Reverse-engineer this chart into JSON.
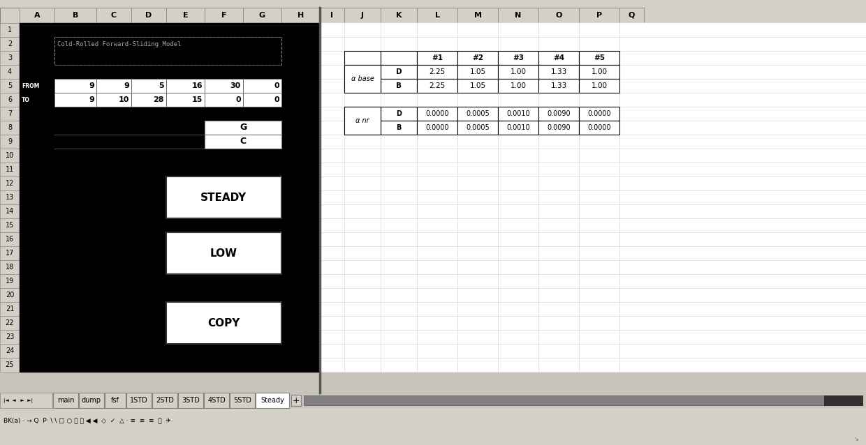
{
  "col_headers": [
    "A",
    "B",
    "C",
    "D",
    "E",
    "F",
    "G",
    "H",
    "I",
    "J",
    "K",
    "L",
    "M",
    "N",
    "O",
    "P",
    "Q"
  ],
  "n_rows": 25,
  "row5_values": [
    "9",
    "9",
    "5",
    "16",
    "30",
    "0"
  ],
  "row6_values": [
    "9",
    "10",
    "28",
    "15",
    "0",
    "0"
  ],
  "row5_label": "FROM",
  "row6_label": "TO",
  "button_steady": "STEADY",
  "button_low": "LOW",
  "button_copy": "COPY",
  "row8_label": "G",
  "row9_label": "C",
  "table1_headers": [
    "",
    "",
    "#1",
    "#2",
    "#3",
    "#4",
    "#5"
  ],
  "table1_row1": [
    "α base",
    "D",
    "2.25",
    "1.05",
    "1.00",
    "1.33",
    "1.00"
  ],
  "table1_row2": [
    "",
    "B",
    "2.25",
    "1.05",
    "1.00",
    "1.33",
    "1.00"
  ],
  "table2_row1": [
    "α nr",
    "D",
    "0.0000",
    "0.0005",
    "0.0010",
    "0.0090",
    "0.0000"
  ],
  "table2_row2": [
    "",
    "B",
    "0.0000",
    "0.0005",
    "0.0010",
    "0.0090",
    "0.0000"
  ],
  "sheet_tabs": [
    "main",
    "dump",
    "fsf",
    "1STD",
    "2STD",
    "3STD",
    "4STD",
    "5STD",
    "Steady"
  ],
  "title_text": "Cold-Rolled Forward-Sliding Model"
}
